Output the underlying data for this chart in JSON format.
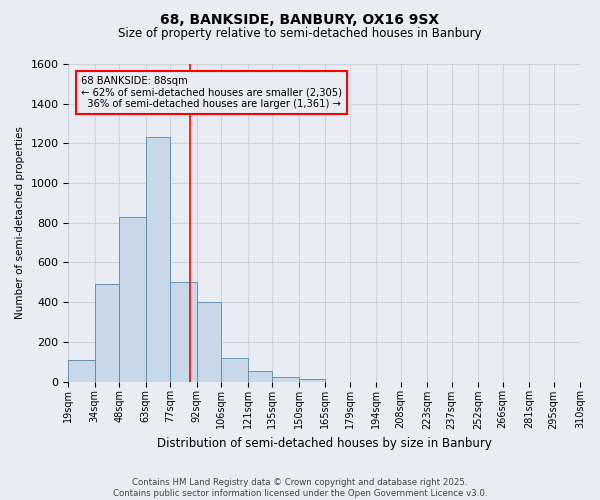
{
  "title1": "68, BANKSIDE, BANBURY, OX16 9SX",
  "title2": "Size of property relative to semi-detached houses in Banbury",
  "xlabel": "Distribution of semi-detached houses by size in Banbury",
  "ylabel": "Number of semi-detached properties",
  "property_label": "68 BANKSIDE: 88sqm",
  "pct_smaller": 62,
  "count_smaller": 2305,
  "pct_larger": 36,
  "count_larger": 1361,
  "bin_labels": [
    "19sqm",
    "34sqm",
    "48sqm",
    "63sqm",
    "77sqm",
    "92sqm",
    "106sqm",
    "121sqm",
    "135sqm",
    "150sqm",
    "165sqm",
    "179sqm",
    "194sqm",
    "208sqm",
    "223sqm",
    "237sqm",
    "252sqm",
    "266sqm",
    "281sqm",
    "295sqm",
    "310sqm"
  ],
  "bin_edges": [
    19,
    34,
    48,
    63,
    77,
    92,
    106,
    121,
    135,
    150,
    165,
    179,
    194,
    208,
    223,
    237,
    252,
    266,
    281,
    295,
    310
  ],
  "bar_heights": [
    110,
    490,
    830,
    1230,
    500,
    400,
    120,
    55,
    25,
    15,
    0,
    0,
    0,
    0,
    0,
    0,
    0,
    0,
    0,
    0
  ],
  "bar_color": "#c8d8e8",
  "bar_edge_color": "#5588aa",
  "vline_color": "red",
  "vline_x": 88,
  "ylim": [
    0,
    1600
  ],
  "yticks": [
    0,
    200,
    400,
    600,
    800,
    1000,
    1200,
    1400,
    1600
  ],
  "annotation_box_color": "red",
  "grid_color": "#c8ccd8",
  "bg_color": "#eaecf4",
  "footer1": "Contains HM Land Registry data © Crown copyright and database right 2025.",
  "footer2": "Contains public sector information licensed under the Open Government Licence v3.0."
}
